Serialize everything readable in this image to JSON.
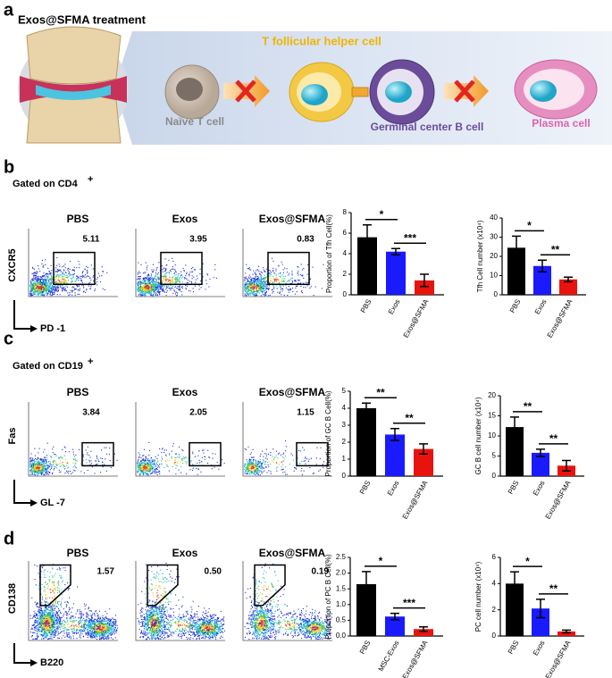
{
  "panel_a": {
    "label": "a",
    "title": "Exos@SFMA treatment",
    "tfh": "T follicular helper cell",
    "naive": "Naïve T cell",
    "gcb": "Germinal center B cell",
    "plasma": "Plasma cell"
  },
  "flow_panels": [
    {
      "label": "b",
      "gate": "Gated on  CD4",
      "gate_sup": "+",
      "y_axis": "CXCR5",
      "x_axis": "PD -1",
      "plots": [
        {
          "title": "PBS",
          "value": 5.11
        },
        {
          "title": "Exos",
          "value": 3.95
        },
        {
          "title": "Exos@SFMA",
          "value": 0.83
        }
      ]
    },
    {
      "label": "c",
      "gate": "Gated on  CD19",
      "gate_sup": "+",
      "y_axis": "Fas",
      "x_axis": "GL -7",
      "plots": [
        {
          "title": "PBS",
          "value": 3.84
        },
        {
          "title": "Exos",
          "value": 2.05
        },
        {
          "title": "Exos@SFMA",
          "value": 1.15
        }
      ]
    },
    {
      "label": "d",
      "y_axis": "CD138",
      "x_axis": "B220",
      "plots": [
        {
          "title": "PBS",
          "value": 1.57
        },
        {
          "title": "Exos",
          "value": {
            "value": 0.5,
            "label": "0.50"
          }
        },
        {
          "title": "Exos@SFMA",
          "value": 0.19
        }
      ]
    }
  ],
  "chart_data": [
    {
      "type": "bar",
      "y_label": "Proportion of Tfh  Cell(%)",
      "categories": [
        "PBS",
        "Exos",
        "Exos@SFMA"
      ],
      "values": [
        5.6,
        4.2,
        1.4
      ],
      "errors": [
        1.2,
        0.3,
        0.6
      ],
      "colors": [
        "#000000",
        "#1a1aff",
        "#e8130f"
      ],
      "ylim": [
        0,
        8
      ],
      "yticks": [
        0,
        2,
        4,
        6,
        8
      ],
      "significance": [
        "*",
        "***"
      ]
    },
    {
      "type": "bar",
      "y_label": "Tfh Cell number (x10⁴)",
      "categories": [
        "PBS",
        "Exos",
        "Exos@SFMA"
      ],
      "values": [
        24.5,
        15,
        8
      ],
      "errors": [
        6,
        3,
        1.2
      ],
      "colors": [
        "#000000",
        "#1a1aff",
        "#e8130f"
      ],
      "ylim": [
        0,
        40
      ],
      "yticks": [
        0,
        10,
        20,
        30,
        40
      ],
      "significance": [
        "*",
        "**"
      ]
    },
    {
      "type": "bar",
      "y_label": "Proportion of GC B  Cell(%)",
      "categories": [
        "PBS",
        "Exos",
        "Exos@SFMA"
      ],
      "values": [
        4.0,
        2.45,
        1.6
      ],
      "errors": [
        0.3,
        0.35,
        0.3
      ],
      "colors": [
        "#000000",
        "#1a1aff",
        "#e8130f"
      ],
      "ylim": [
        0,
        5
      ],
      "yticks": [
        0,
        1,
        2,
        3,
        4,
        5
      ],
      "significance": [
        "**",
        "**"
      ]
    },
    {
      "type": "bar",
      "y_label": "GC B  cell number (x10⁴)",
      "categories": [
        "PBS",
        "Exos",
        "Exos@SFMA"
      ],
      "values": [
        12.2,
        5.8,
        2.6
      ],
      "errors": [
        2.5,
        0.9,
        1.3
      ],
      "colors": [
        "#000000",
        "#1a1aff",
        "#e8130f"
      ],
      "ylim": [
        0,
        20
      ],
      "yticks": [
        0,
        5,
        10,
        15,
        20
      ],
      "significance": [
        "**",
        "**"
      ]
    },
    {
      "type": "bar",
      "y_label": "Proportion of PC B  Cell(%)",
      "categories": [
        "PBS",
        "MSC-Exos",
        "Exos@SFMA"
      ],
      "values": [
        1.65,
        0.62,
        0.22
      ],
      "errors": [
        0.4,
        0.1,
        0.07
      ],
      "colors": [
        "#000000",
        "#1a1aff",
        "#e8130f"
      ],
      "ylim": [
        0,
        2.5
      ],
      "yticks": [
        {
          "value": 0,
          "label": "0.0"
        },
        0.5,
        {
          "value": 1,
          "label": "1.0"
        },
        1.5,
        {
          "value": 2,
          "label": "2.0"
        },
        2.5
      ],
      "significance": [
        "*",
        "***"
      ]
    },
    {
      "type": "bar",
      "y_label": "PC cell number (x10⁴)",
      "categories": [
        "PBS",
        "Exos",
        "Exos@SFMA"
      ],
      "values": [
        4.0,
        2.1,
        0.35
      ],
      "errors": [
        0.9,
        0.7,
        0.1
      ],
      "colors": [
        "#000000",
        "#1a1aff",
        "#e8130f"
      ],
      "ylim": [
        0,
        6
      ],
      "yticks": [
        0,
        2,
        4,
        6
      ],
      "significance": [
        "*",
        "**"
      ]
    }
  ]
}
